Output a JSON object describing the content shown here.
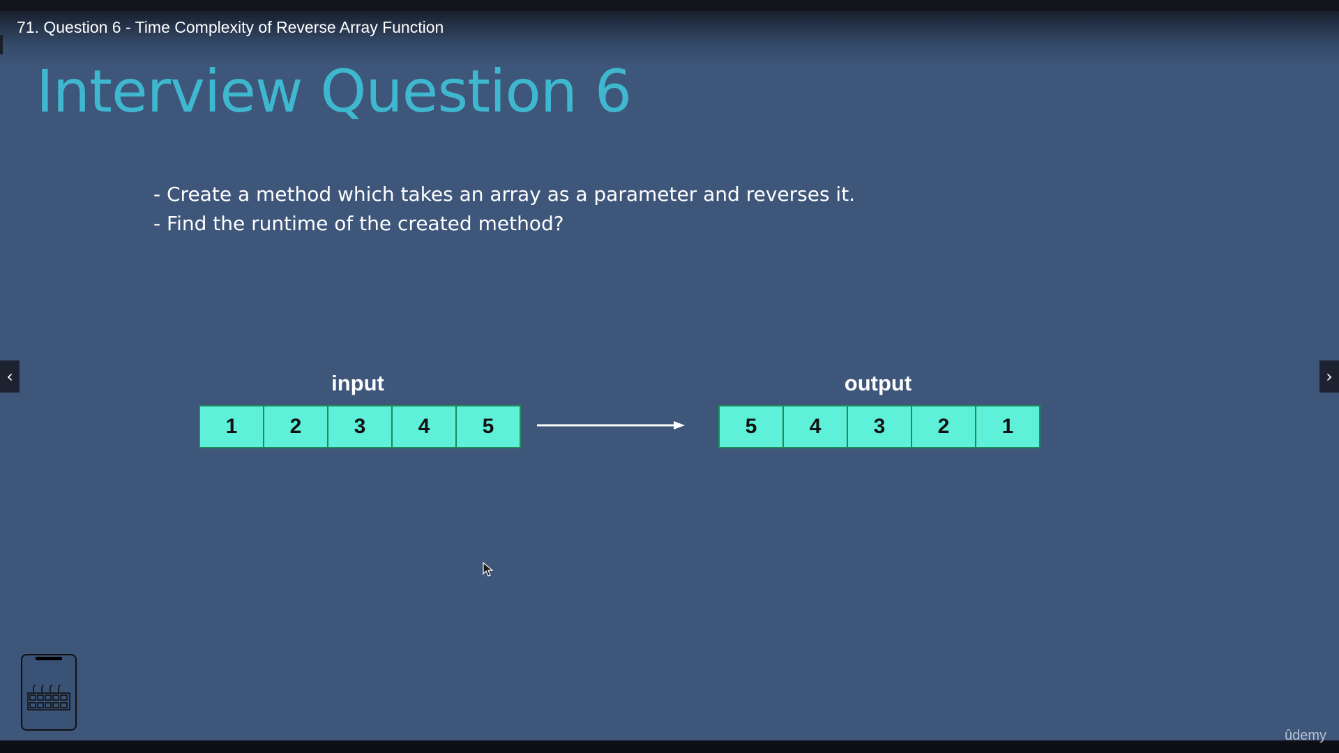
{
  "video": {
    "title": "71. Question 6 - Time Complexity of Reverse Array Function"
  },
  "slide": {
    "heading": "Interview Question 6",
    "bullets": [
      "- Create a method which takes an array as a parameter and reverses it.",
      "- Find the runtime of the created method?"
    ],
    "input_label": "input",
    "output_label": "output",
    "input_values": [
      "1",
      "2",
      "3",
      "4",
      "5"
    ],
    "output_values": [
      "5",
      "4",
      "3",
      "2",
      "1"
    ]
  },
  "navigation": {
    "prev_icon": "‹",
    "next_icon": "›"
  },
  "watermark": "ûdemy",
  "colors": {
    "background": "#3d567a",
    "heading": "#3fb8cf",
    "cell_fill": "#5ef0d8",
    "cell_border": "#1f8a5a"
  }
}
